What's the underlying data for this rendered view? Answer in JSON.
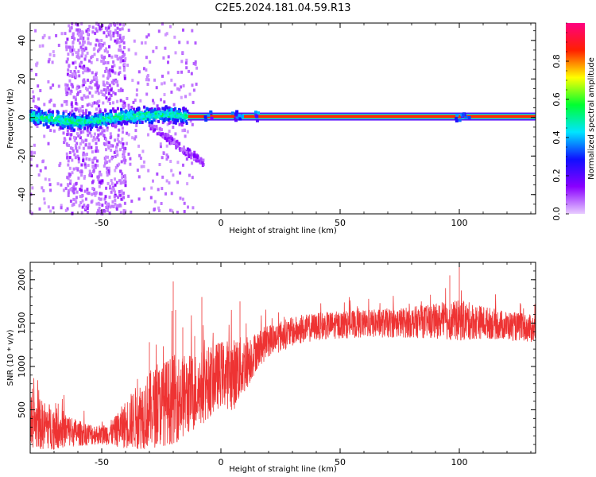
{
  "figure": {
    "title": "C2E5.2024.181.04.59.R13"
  },
  "chart_data": [
    {
      "type": "heatmap",
      "title": "",
      "xlabel": "Height of straight line (km)",
      "ylabel": "Frequency (Hz)",
      "xlim": [
        -80,
        132
      ],
      "ylim": [
        -50,
        49
      ],
      "xticks": [
        -50,
        0,
        50,
        100
      ],
      "yticks": [
        -40,
        -20,
        0,
        20,
        40
      ],
      "colorbar": {
        "label": "Normalized spectral amplitude",
        "range": [
          0,
          1
        ],
        "ticks": [
          0.0,
          0.2,
          0.4,
          0.6,
          0.8
        ],
        "colormap": [
          "#e8ccff",
          "#8a00ff",
          "#1010ff",
          "#00e5ff",
          "#00ff30",
          "#ffff00",
          "#ff2000",
          "#ff0080"
        ]
      },
      "features": {
        "carrier_line": {
          "frequency_hz": 0.5,
          "x_range": [
            -14,
            132
          ],
          "amplitude": 0.85
        },
        "trace_band": [
          {
            "x": -80,
            "f": 0.5
          },
          {
            "x": -70,
            "f": -1.0
          },
          {
            "x": -60,
            "f": -2.5
          },
          {
            "x": -50,
            "f": -1.0
          },
          {
            "x": -40,
            "f": 0.5
          },
          {
            "x": -30,
            "f": 1.0
          },
          {
            "x": -20,
            "f": 1.5
          },
          {
            "x": -14,
            "f": 0.5
          }
        ],
        "doppler_tail": [
          {
            "x": -30,
            "f": -4
          },
          {
            "x": -25,
            "f": -8
          },
          {
            "x": -20,
            "f": -13
          },
          {
            "x": -15,
            "f": -17
          },
          {
            "x": -10,
            "f": -21
          },
          {
            "x": -7,
            "f": -24
          }
        ],
        "noise_column_x_range": [
          -65,
          -40
        ]
      }
    },
    {
      "type": "line",
      "title": "",
      "xlabel": "Height of straight line (km)",
      "ylabel": "SNR (10 * v/v)",
      "xlim": [
        -80,
        132
      ],
      "ylim": [
        0,
        2200
      ],
      "xticks": [
        -50,
        0,
        50,
        100
      ],
      "yticks": [
        500,
        1000,
        1500,
        2000
      ],
      "series": [
        {
          "color": "#ee3333",
          "envelope": [
            {
              "x": -80,
              "mean": 350,
              "spread": 320
            },
            {
              "x": -70,
              "mean": 300,
              "spread": 260
            },
            {
              "x": -60,
              "mean": 230,
              "spread": 150
            },
            {
              "x": -50,
              "mean": 210,
              "spread": 110
            },
            {
              "x": -45,
              "mean": 240,
              "spread": 160
            },
            {
              "x": -40,
              "mean": 330,
              "spread": 280
            },
            {
              "x": -35,
              "mean": 420,
              "spread": 380
            },
            {
              "x": -30,
              "mean": 500,
              "spread": 450
            },
            {
              "x": -25,
              "mean": 560,
              "spread": 480
            },
            {
              "x": -20,
              "mean": 620,
              "spread": 520
            },
            {
              "x": -15,
              "mean": 660,
              "spread": 480
            },
            {
              "x": -10,
              "mean": 720,
              "spread": 450
            },
            {
              "x": -5,
              "mean": 820,
              "spread": 420
            },
            {
              "x": 0,
              "mean": 920,
              "spread": 380
            },
            {
              "x": 5,
              "mean": 900,
              "spread": 420
            },
            {
              "x": 10,
              "mean": 1020,
              "spread": 340
            },
            {
              "x": 15,
              "mean": 1180,
              "spread": 220
            },
            {
              "x": 20,
              "mean": 1300,
              "spread": 190
            },
            {
              "x": 30,
              "mean": 1400,
              "spread": 170
            },
            {
              "x": 40,
              "mean": 1460,
              "spread": 160
            },
            {
              "x": 50,
              "mean": 1480,
              "spread": 160
            },
            {
              "x": 60,
              "mean": 1490,
              "spread": 160
            },
            {
              "x": 70,
              "mean": 1500,
              "spread": 170
            },
            {
              "x": 80,
              "mean": 1510,
              "spread": 180
            },
            {
              "x": 90,
              "mean": 1520,
              "spread": 200
            },
            {
              "x": 100,
              "mean": 1530,
              "spread": 240
            },
            {
              "x": 110,
              "mean": 1510,
              "spread": 190
            },
            {
              "x": 120,
              "mean": 1470,
              "spread": 170
            },
            {
              "x": 132,
              "mean": 1430,
              "spread": 160
            }
          ],
          "spikes": [
            {
              "x": -30,
              "y": 1280
            },
            {
              "x": -20,
              "y": 1980
            },
            {
              "x": -19,
              "y": 1650
            },
            {
              "x": -16,
              "y": 1450
            },
            {
              "x": -11,
              "y": 1350
            },
            {
              "x": -8,
              "y": 1800
            },
            {
              "x": 8,
              "y": 1750
            },
            {
              "x": 7,
              "y": 1280
            },
            {
              "x": 100,
              "y": 2200
            },
            {
              "x": 96,
              "y": 2050
            }
          ]
        }
      ]
    }
  ]
}
